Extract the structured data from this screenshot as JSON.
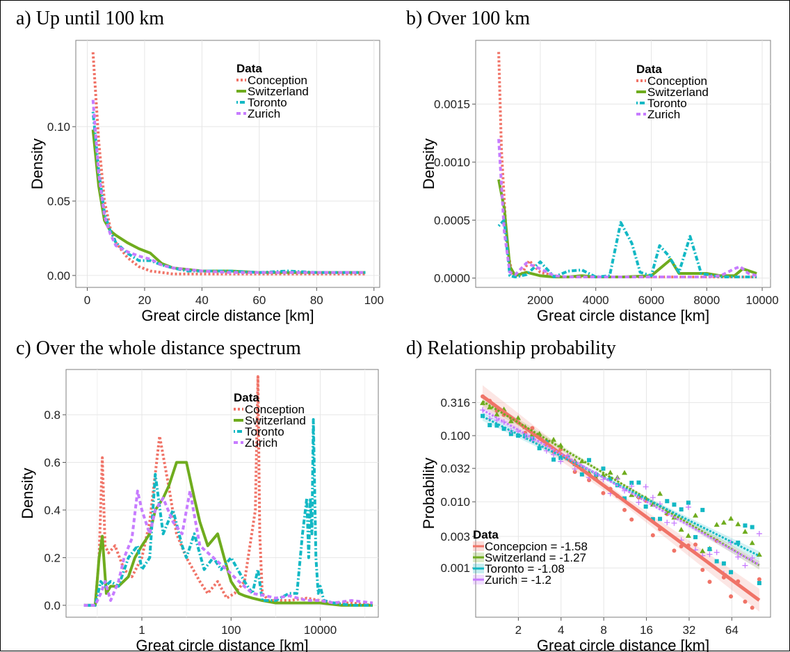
{
  "colors": {
    "Conception": "#F07367",
    "Switzerland": "#6FAC1E",
    "Toronto": "#12B8C4",
    "Zurich": "#C77CFF"
  },
  "panels": {
    "a": {
      "title": "a) Up until 100 km"
    },
    "b": {
      "title": "b) Over 100 km"
    },
    "c": {
      "title": "c) Over the whole distance spectrum"
    },
    "d": {
      "title": "d) Relationship probability"
    }
  },
  "chart_data": [
    {
      "id": "a",
      "type": "line",
      "xlabel": "Great circle distance [km]",
      "ylabel": "Density",
      "xlim": [
        -4,
        102
      ],
      "ylim": [
        -0.008,
        0.158
      ],
      "xticks": [
        0,
        20,
        40,
        60,
        80,
        100
      ],
      "xticklabels": [
        "0",
        "20",
        "40",
        "60",
        "80",
        "100"
      ],
      "yticks": [
        0,
        0.05,
        0.1
      ],
      "yticklabels": [
        "0.00",
        "0.05",
        "0.10"
      ],
      "legend": {
        "title": "Data",
        "position": "top-right",
        "entries": [
          "Conception",
          "Switzerland",
          "Toronto",
          "Zurich"
        ]
      },
      "series": [
        {
          "name": "Conception",
          "style": "dotted",
          "x": [
            2,
            4,
            6,
            8,
            10,
            14,
            18,
            22,
            26,
            30,
            35,
            40,
            50,
            60,
            70,
            80,
            90,
            97
          ],
          "y": [
            0.15,
            0.09,
            0.05,
            0.032,
            0.022,
            0.012,
            0.006,
            0.003,
            0.002,
            0.001,
            0.001,
            0.001,
            0.001,
            0.001,
            0.001,
            0.001,
            0.001,
            0.001
          ]
        },
        {
          "name": "Switzerland",
          "style": "solid",
          "x": [
            2,
            4,
            6,
            8,
            10,
            14,
            18,
            22,
            26,
            30,
            35,
            40,
            50,
            60,
            70,
            80,
            90,
            97
          ],
          "y": [
            0.098,
            0.06,
            0.037,
            0.03,
            0.027,
            0.022,
            0.018,
            0.015,
            0.008,
            0.005,
            0.004,
            0.003,
            0.003,
            0.002,
            0.002,
            0.002,
            0.002,
            0.002
          ]
        },
        {
          "name": "Toronto",
          "style": "dotdash",
          "x": [
            2,
            4,
            6,
            8,
            10,
            14,
            18,
            22,
            26,
            30,
            35,
            40,
            50,
            60,
            70,
            80,
            90,
            97
          ],
          "y": [
            0.11,
            0.07,
            0.042,
            0.03,
            0.022,
            0.015,
            0.01,
            0.01,
            0.007,
            0.005,
            0.003,
            0.003,
            0.003,
            0.002,
            0.003,
            0.002,
            0.002,
            0.002
          ]
        },
        {
          "name": "Zurich",
          "style": "dashed",
          "x": [
            2,
            4,
            6,
            8,
            10,
            14,
            18,
            22,
            26,
            30,
            35,
            40,
            50,
            60,
            70,
            80,
            90,
            97
          ],
          "y": [
            0.118,
            0.068,
            0.04,
            0.028,
            0.02,
            0.016,
            0.013,
            0.011,
            0.007,
            0.005,
            0.004,
            0.003,
            0.002,
            0.002,
            0.002,
            0.002,
            0.002,
            0.002
          ]
        }
      ]
    },
    {
      "id": "b",
      "type": "line",
      "xlabel": "Great circle distance [km]",
      "ylabel": "Density",
      "xlim": [
        -330,
        10300
      ],
      "ylim": [
        -8e-05,
        0.00205
      ],
      "xticks": [
        2000,
        4000,
        6000,
        8000,
        10000
      ],
      "xticklabels": [
        "2000",
        "4000",
        "6000",
        "8000",
        "10000"
      ],
      "yticks": [
        0,
        0.0005,
        0.001,
        0.0015
      ],
      "yticklabels": [
        "0.0000",
        "0.0005",
        "0.0010",
        "0.0015"
      ],
      "legend": {
        "title": "Data",
        "position": "top-right",
        "entries": [
          "Conception",
          "Switzerland",
          "Toronto",
          "Zurich"
        ]
      },
      "series": [
        {
          "name": "Conception",
          "style": "dotted",
          "x": [
            500,
            600,
            800,
            1000,
            1300,
            1600,
            2000,
            2500,
            3000,
            3500,
            4000,
            5000,
            6000,
            7000,
            8000,
            9000,
            9800
          ],
          "y": [
            0.00195,
            0.0011,
            0.00025,
            3e-05,
            2e-05,
            0.00015,
            5e-05,
            2e-05,
            1e-05,
            1e-05,
            1e-05,
            1e-05,
            1e-05,
            1e-05,
            1e-05,
            1e-05,
            1e-05
          ]
        },
        {
          "name": "Switzerland",
          "style": "solid",
          "x": [
            500,
            700,
            900,
            1100,
            1500,
            2000,
            2500,
            3000,
            3500,
            4000,
            5000,
            6000,
            6300,
            6700,
            7000,
            7500,
            8000,
            8500,
            9000,
            9300,
            9800
          ],
          "y": [
            0.00085,
            0.0006,
            0.0001,
            2e-05,
            5e-05,
            2e-05,
            1e-05,
            1e-05,
            2e-05,
            1e-05,
            1e-05,
            2e-05,
            8e-05,
            0.00016,
            4e-05,
            4e-05,
            4e-05,
            2e-05,
            2e-05,
            8e-05,
            4e-05
          ]
        },
        {
          "name": "Toronto",
          "style": "dotdash",
          "x": [
            500,
            700,
            900,
            1100,
            1500,
            2000,
            2500,
            3000,
            3500,
            4000,
            4500,
            4900,
            5300,
            5600,
            6000,
            6300,
            6600,
            7000,
            7400,
            7800,
            8500,
            9000,
            9800
          ],
          "y": [
            0.00045,
            0.0005,
            2e-05,
            1e-05,
            3e-05,
            0.00014,
            1e-05,
            6e-05,
            7e-05,
            1e-05,
            2e-05,
            0.00048,
            0.0003,
            5e-05,
            2e-05,
            0.00028,
            0.0002,
            5e-05,
            0.00036,
            4e-05,
            1e-05,
            1e-05,
            1e-05
          ]
        },
        {
          "name": "Zurich",
          "style": "dashed",
          "x": [
            500,
            700,
            900,
            1100,
            1500,
            2000,
            2500,
            3000,
            4000,
            5000,
            6000,
            7000,
            8000,
            8500,
            9000,
            9200,
            9500,
            9800
          ],
          "y": [
            0.0012,
            0.0004,
            5e-05,
            3e-05,
            0.00013,
            8e-05,
            2e-05,
            1e-05,
            1e-05,
            1e-05,
            1e-05,
            1e-05,
            1e-05,
            2e-05,
            8e-05,
            0.0001,
            4e-05,
            2e-05
          ]
        }
      ]
    },
    {
      "id": "c",
      "type": "line",
      "xlabel": "Great circle distance [km]",
      "ylabel": "Density",
      "xscale": "log10",
      "xlim": [
        0.02,
        200000
      ],
      "ylim": [
        -0.05,
        0.99
      ],
      "xticks": [
        1,
        100,
        10000
      ],
      "xticklabels": [
        "1",
        "100",
        "10000"
      ],
      "xminor": [
        0.1,
        10,
        1000,
        100000
      ],
      "yticks": [
        0,
        0.2,
        0.4,
        0.6,
        0.8
      ],
      "yticklabels": [
        "0.0",
        "0.2",
        "0.4",
        "0.6",
        "0.8"
      ],
      "legend": {
        "title": "Data",
        "position": "top-right",
        "entries": [
          "Conception",
          "Switzerland",
          "Toronto",
          "Zurich"
        ]
      },
      "series": [
        {
          "name": "Conception",
          "style": "dotted",
          "x": [
            0.05,
            0.09,
            0.11,
            0.13,
            0.15,
            0.18,
            0.25,
            0.4,
            0.6,
            1,
            1.5,
            2.5,
            4,
            6,
            10,
            20,
            30,
            50,
            80,
            120,
            200,
            350,
            400,
            440,
            500,
            700,
            1000,
            2000,
            5000,
            10000,
            20000,
            50000,
            150000
          ],
          "y": [
            0,
            0,
            0.2,
            0.62,
            0.25,
            0.22,
            0.25,
            0.15,
            0.12,
            0.2,
            0.35,
            0.71,
            0.5,
            0.3,
            0.2,
            0.1,
            0.05,
            0.1,
            0.03,
            0.05,
            0.1,
            0.4,
            0.96,
            0.3,
            0.05,
            0.02,
            0.02,
            0.02,
            0.03,
            0.02,
            0.01,
            0.01,
            0
          ]
        },
        {
          "name": "Switzerland",
          "style": "solid",
          "x": [
            0.05,
            0.09,
            0.11,
            0.13,
            0.16,
            0.2,
            0.3,
            0.5,
            0.7,
            1,
            1.5,
            2,
            3,
            4,
            6,
            10,
            15,
            20,
            30,
            50,
            70,
            100,
            150,
            200,
            300,
            500,
            1000,
            2000,
            5000,
            10000,
            30000,
            150000
          ],
          "y": [
            0,
            0,
            0.2,
            0.29,
            0.05,
            0.08,
            0.08,
            0.12,
            0.2,
            0.25,
            0.3,
            0.4,
            0.45,
            0.5,
            0.6,
            0.6,
            0.45,
            0.35,
            0.25,
            0.3,
            0.2,
            0.1,
            0.05,
            0.04,
            0.03,
            0.02,
            0.01,
            0.01,
            0.01,
            0.01,
            0,
            0
          ]
        },
        {
          "name": "Toronto",
          "style": "dotdash",
          "x": [
            0.05,
            0.09,
            0.12,
            0.15,
            0.2,
            0.3,
            0.5,
            0.8,
            1,
            1.5,
            2,
            3,
            5,
            8,
            10,
            15,
            25,
            40,
            60,
            100,
            200,
            300,
            400,
            500,
            1000,
            2000,
            3000,
            4000,
            5000,
            5500,
            6000,
            6500,
            7000,
            8000,
            9000,
            10000,
            12000,
            20000,
            50000,
            150000
          ],
          "y": [
            0,
            0,
            0.1,
            0.08,
            0.1,
            0.08,
            0.2,
            0.25,
            0.15,
            0.2,
            0.55,
            0.3,
            0.4,
            0.25,
            0.2,
            0.3,
            0.15,
            0.2,
            0.15,
            0.2,
            0.1,
            0.05,
            0.15,
            0.02,
            0.02,
            0.05,
            0.05,
            0.3,
            0.45,
            0.2,
            0.45,
            0.3,
            0.78,
            0.2,
            0.05,
            0.08,
            0.02,
            0.01,
            0,
            0
          ]
        },
        {
          "name": "Zurich",
          "style": "dashed",
          "x": [
            0.05,
            0.09,
            0.12,
            0.15,
            0.2,
            0.3,
            0.4,
            0.6,
            0.8,
            1,
            1.5,
            2,
            3,
            5,
            8,
            12,
            20,
            40,
            80,
            150,
            300,
            600,
            1000,
            2000,
            5000,
            10000,
            20000,
            50000,
            150000
          ],
          "y": [
            0,
            0,
            0.05,
            0.1,
            0.02,
            0.1,
            0.2,
            0.28,
            0.48,
            0.4,
            0.3,
            0.4,
            0.45,
            0.35,
            0.3,
            0.48,
            0.25,
            0.2,
            0.15,
            0.1,
            0.05,
            0.04,
            0.03,
            0.04,
            0.02,
            0.02,
            0.01,
            0.02,
            0.01
          ]
        }
      ]
    },
    {
      "id": "d",
      "type": "scatter",
      "xlabel": "Great circle distance [km]",
      "ylabel": "Probability",
      "xscale": "log2",
      "yscale": "log10",
      "xlim": [
        1,
        120
      ],
      "ylim": [
        0.00018,
        1.0
      ],
      "xticks": [
        2,
        4,
        8,
        16,
        32,
        64
      ],
      "xticklabels": [
        "2",
        "4",
        "8",
        "16",
        "32",
        "64"
      ],
      "yticks": [
        0.001,
        0.003,
        0.01,
        0.032,
        0.1,
        0.316
      ],
      "yticklabels": [
        "0.001",
        "0.003",
        "0.010",
        "0.032",
        "0.100",
        "0.316"
      ],
      "legend": {
        "title": "Data",
        "position": "bottom-left",
        "entries": [
          "Concepcion  = -1.58",
          "Switzerland  = -1.27",
          "Toronto  = -1.08",
          "Zurich  = -1.2"
        ]
      },
      "series": [
        {
          "name": "Concepcion  = -1.58",
          "marker": "circle",
          "slope": -1.58,
          "fit_at_1": 0.47,
          "band": 0.35
        },
        {
          "name": "Switzerland  = -1.27",
          "marker": "triangle",
          "slope": -1.27,
          "fit_at_1": 0.38,
          "band": 0.12
        },
        {
          "name": "Toronto  = -1.08",
          "marker": "square",
          "slope": -1.08,
          "fit_at_1": 0.22,
          "band": 0.12
        },
        {
          "name": "Zurich  = -1.2",
          "marker": "plus",
          "slope": -1.2,
          "fit_at_1": 0.28,
          "band": 0.1
        }
      ]
    }
  ]
}
